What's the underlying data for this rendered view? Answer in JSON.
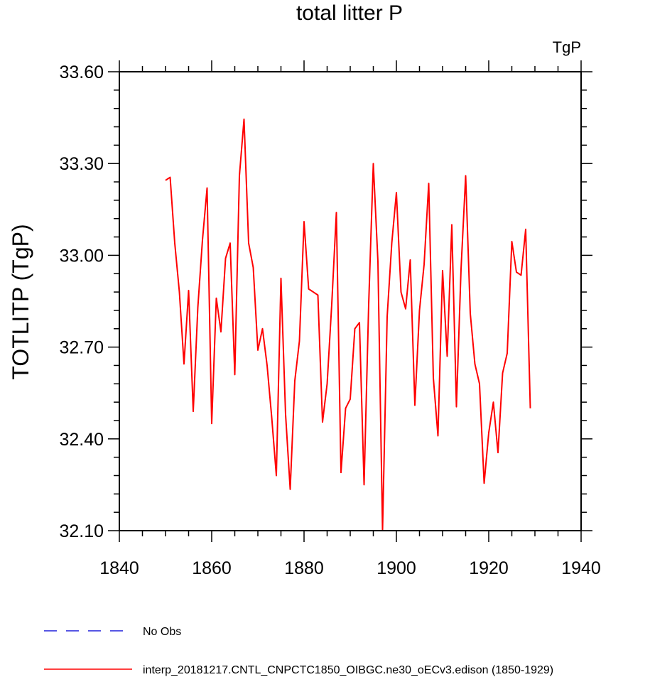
{
  "chart_data": {
    "type": "line",
    "title": "total litter P",
    "units_label": "TgP",
    "ylabel": "TOTLITP  (TgP)",
    "xlabel": "",
    "xlim": [
      1840,
      1940
    ],
    "ylim": [
      32.1,
      33.6
    ],
    "x_major_ticks": [
      1840,
      1860,
      1880,
      1900,
      1920,
      1940
    ],
    "x_tick_labels": [
      "1840",
      "1860",
      "1880",
      "1900",
      "1920",
      "1940"
    ],
    "y_major_ticks": [
      32.1,
      32.4,
      32.7,
      33.0,
      33.3,
      33.6
    ],
    "y_tick_labels": [
      "32.10",
      "32.40",
      "32.70",
      "33.00",
      "33.30",
      "33.60"
    ],
    "grid": false,
    "legend_position": "bottom",
    "series": [
      {
        "name": "No Obs",
        "color": "#1e1edc",
        "style": "dashed",
        "x": [],
        "values": []
      },
      {
        "name": "interp_20181217.CNTL_CNPCTC1850_OIBGC.ne30_oECv3.edison (1850-1929)",
        "color": "#ff0000",
        "style": "solid",
        "x": [
          1850,
          1851,
          1852,
          1853,
          1854,
          1855,
          1856,
          1857,
          1858,
          1859,
          1860,
          1861,
          1862,
          1863,
          1864,
          1865,
          1866,
          1867,
          1868,
          1869,
          1870,
          1871,
          1872,
          1873,
          1874,
          1875,
          1876,
          1877,
          1878,
          1879,
          1880,
          1881,
          1882,
          1883,
          1884,
          1885,
          1886,
          1887,
          1888,
          1889,
          1890,
          1891,
          1892,
          1893,
          1894,
          1895,
          1896,
          1897,
          1898,
          1899,
          1900,
          1901,
          1902,
          1903,
          1904,
          1905,
          1906,
          1907,
          1908,
          1909,
          1910,
          1911,
          1912,
          1913,
          1914,
          1915,
          1916,
          1917,
          1918,
          1919,
          1920,
          1921,
          1922,
          1923,
          1924,
          1925,
          1926,
          1927,
          1928,
          1929
        ],
        "values": [
          33.245,
          33.255,
          33.04,
          32.88,
          32.645,
          32.885,
          32.49,
          32.83,
          33.05,
          33.22,
          32.45,
          32.86,
          32.75,
          32.99,
          33.04,
          32.61,
          33.26,
          33.445,
          33.04,
          32.96,
          32.69,
          32.76,
          32.64,
          32.47,
          32.28,
          32.925,
          32.48,
          32.235,
          32.59,
          32.72,
          33.11,
          32.89,
          32.88,
          32.87,
          32.455,
          32.58,
          32.84,
          33.14,
          32.29,
          32.5,
          32.53,
          32.76,
          32.78,
          32.25,
          32.84,
          33.3,
          32.98,
          32.1,
          32.8,
          33.04,
          33.205,
          32.88,
          32.825,
          32.985,
          32.51,
          32.82,
          32.97,
          33.235,
          32.6,
          32.41,
          32.95,
          32.67,
          33.1,
          32.505,
          32.955,
          33.26,
          32.81,
          32.645,
          32.58,
          32.255,
          32.42,
          32.52,
          32.355,
          32.615,
          32.68,
          33.045,
          32.945,
          32.935,
          33.085,
          32.5
        ]
      }
    ]
  }
}
